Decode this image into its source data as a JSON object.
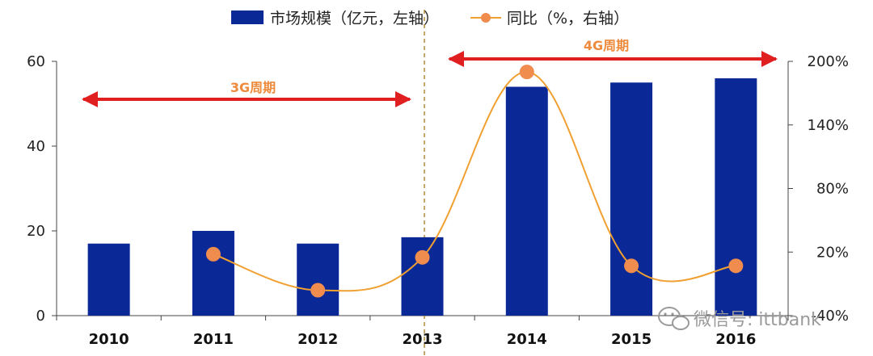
{
  "colors": {
    "bar": "#0a2896",
    "line": "#f0a030",
    "marker": "#f08c4e",
    "period_arrow": "#e02020",
    "period_text": "#ed8a3c",
    "divider": "#b08a3c",
    "watermark": "#9a9a9a"
  },
  "legend": {
    "bar_label": "市场规模（亿元，左轴）",
    "line_label": "同比（%，右轴）"
  },
  "periods": {
    "p3g": "3G周期",
    "p4g": "4G周期"
  },
  "watermark": {
    "text": "微信号: ittbank",
    "icon": "wechat-logo-icon"
  },
  "chart_data": {
    "type": "bar",
    "categories": [
      "2010",
      "2011",
      "2012",
      "2013",
      "2014",
      "2015",
      "2016"
    ],
    "series": [
      {
        "name": "市场规模（亿元，左轴）",
        "type": "bar",
        "axis": "left",
        "values": [
          17,
          20,
          17,
          18.5,
          54,
          55,
          56
        ]
      },
      {
        "name": "同比（%，右轴）",
        "type": "line",
        "axis": "right",
        "values": [
          null,
          18,
          -16,
          15,
          190,
          7,
          7
        ]
      }
    ],
    "y_left": {
      "min": 0,
      "max": 60,
      "ticks": [
        "0",
        "20",
        "40",
        "60"
      ]
    },
    "y_right": {
      "min": -40,
      "max": 200,
      "ticks": [
        "-40%",
        "20%",
        "80%",
        "140%",
        "200%"
      ]
    },
    "grid": false,
    "legend_position": "top"
  }
}
